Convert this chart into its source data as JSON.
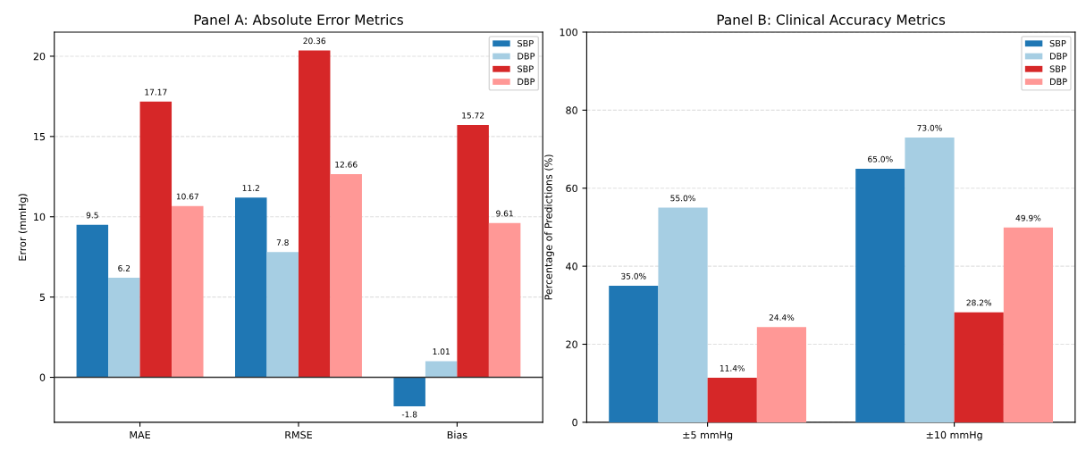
{
  "chart_data": [
    {
      "type": "bar",
      "title": "Panel A: Absolute Error Metrics",
      "ylabel": "Error (mmHg)",
      "categories": [
        "MAE",
        "RMSE",
        "Bias"
      ],
      "series": [
        {
          "name": "SBP",
          "color": "#1f77b4",
          "values": [
            9.5,
            11.2,
            -1.8
          ],
          "value_labels": [
            "9.5",
            "11.2",
            "-1.8"
          ]
        },
        {
          "name": "DBP",
          "color": "#a6cee3",
          "values": [
            6.2,
            7.8,
            1.01
          ],
          "value_labels": [
            "6.2",
            "7.8",
            "1.01"
          ]
        },
        {
          "name": "SBP",
          "color": "#d62728",
          "values": [
            17.17,
            20.36,
            15.72
          ],
          "value_labels": [
            "17.17",
            "20.36",
            "15.72"
          ]
        },
        {
          "name": "DBP",
          "color": "#ff9896",
          "values": [
            10.67,
            12.66,
            9.61
          ],
          "value_labels": [
            "10.67",
            "12.66",
            "9.61"
          ]
        }
      ],
      "ylim": [
        -2.8,
        21.5
      ],
      "yticks": [
        0,
        5,
        10,
        15,
        20
      ],
      "grid": "y",
      "legend": "top right",
      "ref_lines": [
        {
          "axis": "y",
          "value": 0,
          "color": "#333333",
          "line_style": "solid"
        }
      ]
    },
    {
      "type": "bar",
      "title": "Panel B: Clinical Accuracy Metrics",
      "ylabel": "Percentage of Predictions (%)",
      "categories": [
        "±5 mmHg",
        "±10 mmHg"
      ],
      "series": [
        {
          "name": "SBP",
          "color": "#1f77b4",
          "values": [
            35.0,
            65.0
          ],
          "value_labels": [
            "35.0%",
            "65.0%"
          ]
        },
        {
          "name": "DBP",
          "color": "#a6cee3",
          "values": [
            55.0,
            73.0
          ],
          "value_labels": [
            "55.0%",
            "73.0%"
          ]
        },
        {
          "name": "SBP",
          "color": "#d62728",
          "values": [
            11.4,
            28.2
          ],
          "value_labels": [
            "11.4%",
            "28.2%"
          ]
        },
        {
          "name": "DBP",
          "color": "#ff9896",
          "values": [
            24.4,
            49.9
          ],
          "value_labels": [
            "24.4%",
            "49.9%"
          ]
        }
      ],
      "ylim": [
        0,
        100
      ],
      "yticks": [
        0,
        20,
        40,
        60,
        80,
        100
      ],
      "grid": "y",
      "legend": "top right"
    }
  ]
}
